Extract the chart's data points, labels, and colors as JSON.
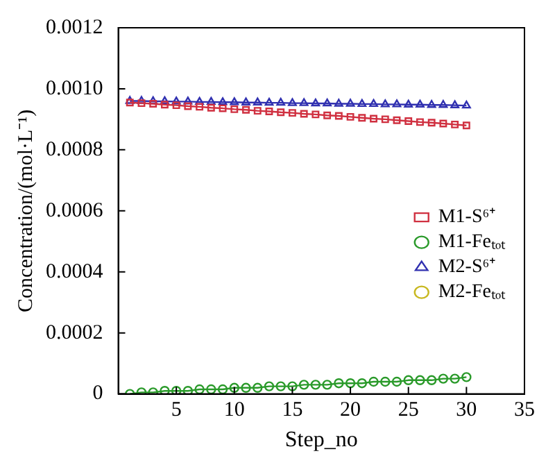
{
  "chart_data": {
    "type": "line",
    "xlabel": "Step_no",
    "ylabel": "Concentration/(mol·L⁻¹)",
    "x": [
      1,
      2,
      3,
      4,
      5,
      6,
      7,
      8,
      9,
      10,
      11,
      12,
      13,
      14,
      15,
      16,
      17,
      18,
      19,
      20,
      21,
      22,
      23,
      24,
      25,
      26,
      27,
      28,
      29,
      30
    ],
    "series": [
      {
        "name": "M1-S⁶⁺",
        "color": "#d03040",
        "marker": "square",
        "values": [
          0.000955,
          0.000953,
          0.000951,
          0.000948,
          0.000946,
          0.000943,
          0.000941,
          0.000938,
          0.000936,
          0.000933,
          0.000931,
          0.000928,
          0.000926,
          0.000923,
          0.000921,
          0.000918,
          0.000916,
          0.000913,
          0.000911,
          0.000908,
          0.000905,
          0.000902,
          0.0009,
          0.000897,
          0.000894,
          0.000891,
          0.000889,
          0.000886,
          0.000883,
          0.00088
        ]
      },
      {
        "name": "M1-Feₜₒₜ",
        "color": "#2a9a2a",
        "marker": "circle",
        "values": [
          0,
          5e-06,
          5e-06,
          1e-05,
          1e-05,
          1e-05,
          1.5e-05,
          1.5e-05,
          1.5e-05,
          2e-05,
          2e-05,
          2e-05,
          2.5e-05,
          2.5e-05,
          2.5e-05,
          3e-05,
          3e-05,
          3e-05,
          3.5e-05,
          3.5e-05,
          3.5e-05,
          4e-05,
          4e-05,
          4e-05,
          4.5e-05,
          4.5e-05,
          4.5e-05,
          5e-05,
          5e-05,
          5.5e-05
        ]
      },
      {
        "name": "M2-S⁶⁺",
        "color": "#3030b0",
        "marker": "triangle",
        "values": [
          0.00096,
          0.00096,
          0.000959,
          0.000959,
          0.000958,
          0.000958,
          0.000957,
          0.000957,
          0.000956,
          0.000956,
          0.000955,
          0.000955,
          0.000954,
          0.000954,
          0.000953,
          0.000953,
          0.000952,
          0.000952,
          0.000951,
          0.000951,
          0.00095,
          0.00095,
          0.000949,
          0.000949,
          0.000948,
          0.000948,
          0.000947,
          0.000947,
          0.000946,
          0.000945
        ]
      },
      {
        "name": "M2-Feₜₒₜ",
        "color": "#c8b820",
        "marker": "circle",
        "values": [
          null,
          null,
          null,
          null,
          null,
          null,
          null,
          null,
          null,
          null,
          null,
          null,
          null,
          null,
          null,
          null,
          null,
          null,
          null,
          null,
          null,
          null,
          null,
          null,
          null,
          null,
          null,
          null,
          null,
          null
        ]
      }
    ],
    "xlim": [
      0,
      35
    ],
    "xticks": [
      5,
      10,
      15,
      20,
      25,
      30,
      35
    ],
    "ylim": [
      0,
      0.0012
    ],
    "yticks": [
      0,
      0.0002,
      0.0004,
      0.0006,
      0.0008,
      {
        "value": 0.001,
        "label": "0.0010"
      },
      0.0012
    ],
    "grid": false,
    "legend": "center right"
  }
}
